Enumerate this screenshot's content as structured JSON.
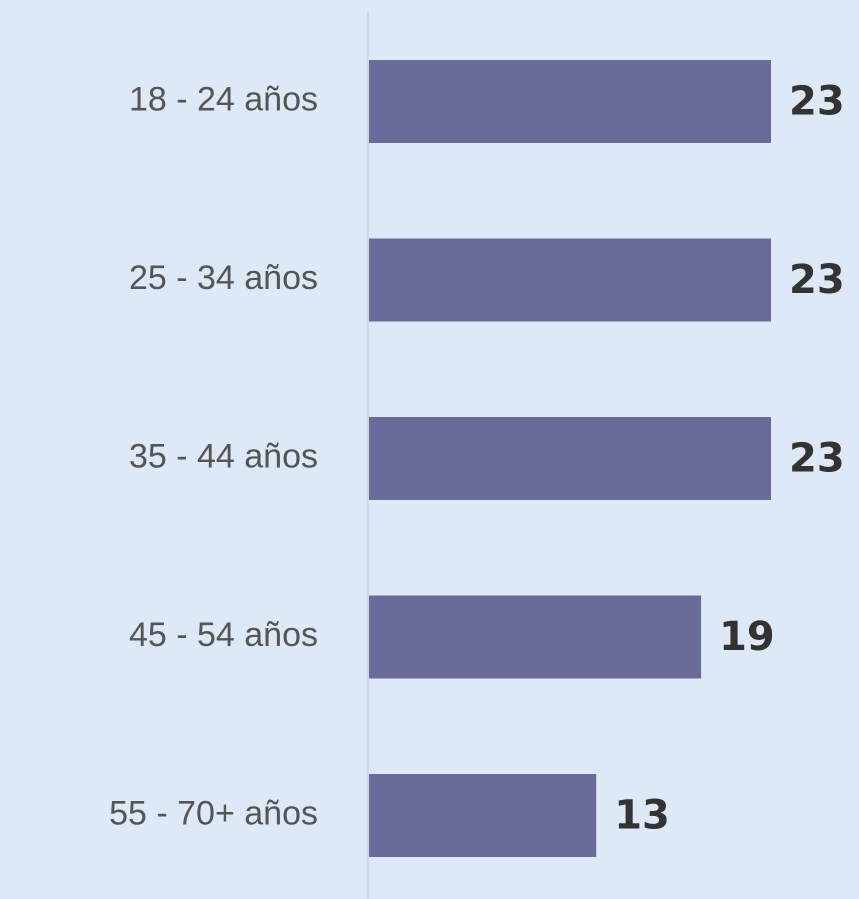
{
  "chart_data": {
    "type": "bar",
    "orientation": "horizontal",
    "categories": [
      "18 - 24 años",
      "25 - 34 años",
      "35 - 44 años",
      "45 - 54 años",
      "55 - 70+ años"
    ],
    "values": [
      23,
      23,
      23,
      19,
      13
    ],
    "color": "#6b6b9a"
  }
}
